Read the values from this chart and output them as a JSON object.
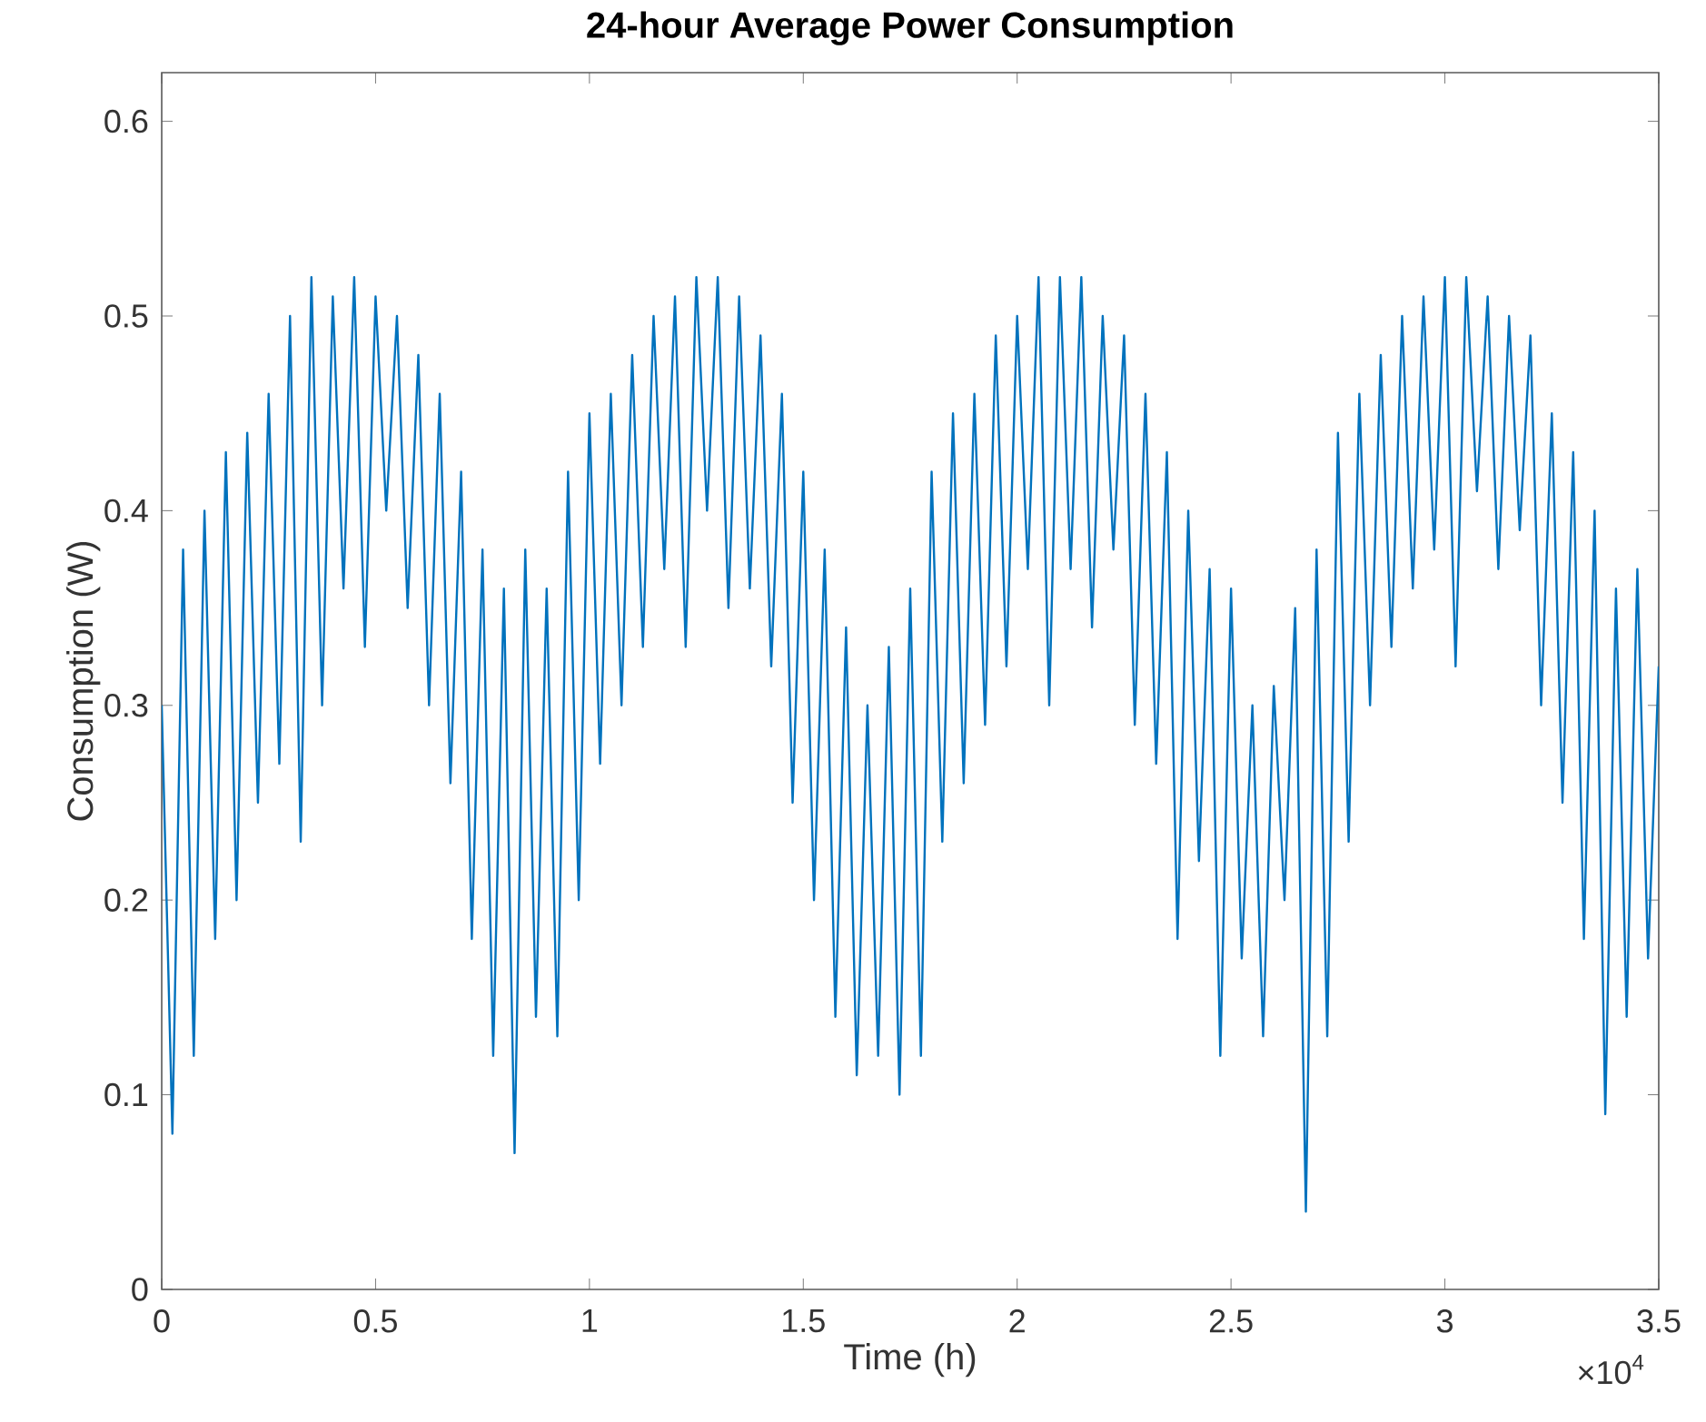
{
  "chart_data": {
    "type": "line",
    "title": "24-hour Average Power Consumption",
    "xlabel": "Time (h)",
    "ylabel": "Consumption (W)",
    "annotations": [
      "×10$^{4}$"
    ],
    "xlim": [
      0,
      3.5
    ],
    "xticks": [
      0,
      0.5,
      1,
      1.5,
      2,
      2.5,
      3,
      3.5
    ],
    "ylim": [
      0,
      0.625
    ],
    "yticks": [
      0,
      0.1,
      0.2,
      0.3,
      0.4,
      0.5,
      0.6
    ],
    "grid": false,
    "line_style": "solid",
    "x": [
      0,
      0.025,
      0.05,
      0.075,
      0.1,
      0.125,
      0.15,
      0.175,
      0.2,
      0.225,
      0.25,
      0.275,
      0.3,
      0.325,
      0.35,
      0.375,
      0.4,
      0.425,
      0.45,
      0.475,
      0.5,
      0.525,
      0.55,
      0.575,
      0.6,
      0.625,
      0.65,
      0.675,
      0.7,
      0.725,
      0.75,
      0.775,
      0.8,
      0.825,
      0.85,
      0.875,
      0.9,
      0.925,
      0.95,
      0.975,
      1,
      1.025,
      1.05,
      1.075,
      1.1,
      1.125,
      1.15,
      1.175,
      1.2,
      1.225,
      1.25,
      1.275,
      1.3,
      1.325,
      1.35,
      1.375,
      1.4,
      1.425,
      1.45,
      1.475,
      1.5,
      1.525,
      1.55,
      1.575,
      1.6,
      1.625,
      1.65,
      1.675,
      1.7,
      1.725,
      1.75,
      1.775,
      1.8,
      1.825,
      1.85,
      1.875,
      1.9,
      1.925,
      1.95,
      1.975,
      2,
      2.025,
      2.05,
      2.075,
      2.1,
      2.125,
      2.15,
      2.175,
      2.2,
      2.225,
      2.25,
      2.275,
      2.3,
      2.325,
      2.35,
      2.375,
      2.4,
      2.425,
      2.45,
      2.475,
      2.5,
      2.525,
      2.55,
      2.575,
      2.6,
      2.625,
      2.65,
      2.675,
      2.7,
      2.725,
      2.75,
      2.775,
      2.8,
      2.825,
      2.85,
      2.875,
      2.9,
      2.925,
      2.95,
      2.975,
      3,
      3.025,
      3.05,
      3.075,
      3.1,
      3.125,
      3.15,
      3.175,
      3.2,
      3.225,
      3.25,
      3.275,
      3.3,
      3.325,
      3.35,
      3.375,
      3.4,
      3.425,
      3.45,
      3.475,
      3.5
    ],
    "series": [
      {
        "color": "#0072bd",
        "values": [
          0.3,
          0.08,
          0.38,
          0.12,
          0.4,
          0.18,
          0.43,
          0.2,
          0.44,
          0.25,
          0.46,
          0.27,
          0.5,
          0.23,
          0.52,
          0.3,
          0.51,
          0.36,
          0.52,
          0.33,
          0.51,
          0.4,
          0.5,
          0.35,
          0.48,
          0.3,
          0.46,
          0.26,
          0.42,
          0.18,
          0.38,
          0.12,
          0.36,
          0.07,
          0.38,
          0.14,
          0.36,
          0.13,
          0.42,
          0.2,
          0.45,
          0.27,
          0.46,
          0.3,
          0.48,
          0.33,
          0.5,
          0.37,
          0.51,
          0.33,
          0.52,
          0.4,
          0.52,
          0.35,
          0.51,
          0.36,
          0.49,
          0.32,
          0.46,
          0.25,
          0.42,
          0.2,
          0.38,
          0.14,
          0.34,
          0.11,
          0.3,
          0.12,
          0.33,
          0.1,
          0.36,
          0.12,
          0.42,
          0.23,
          0.45,
          0.26,
          0.46,
          0.29,
          0.49,
          0.32,
          0.5,
          0.37,
          0.52,
          0.3,
          0.52,
          0.37,
          0.52,
          0.34,
          0.5,
          0.38,
          0.49,
          0.29,
          0.46,
          0.27,
          0.43,
          0.18,
          0.4,
          0.22,
          0.37,
          0.12,
          0.36,
          0.17,
          0.3,
          0.13,
          0.31,
          0.2,
          0.35,
          0.04,
          0.38,
          0.13,
          0.44,
          0.23,
          0.46,
          0.3,
          0.48,
          0.33,
          0.5,
          0.36,
          0.51,
          0.38,
          0.52,
          0.32,
          0.52,
          0.41,
          0.51,
          0.37,
          0.5,
          0.39,
          0.49,
          0.3,
          0.45,
          0.25,
          0.43,
          0.18,
          0.4,
          0.09,
          0.36,
          0.14,
          0.37,
          0.17,
          0.32
        ]
      }
    ]
  }
}
